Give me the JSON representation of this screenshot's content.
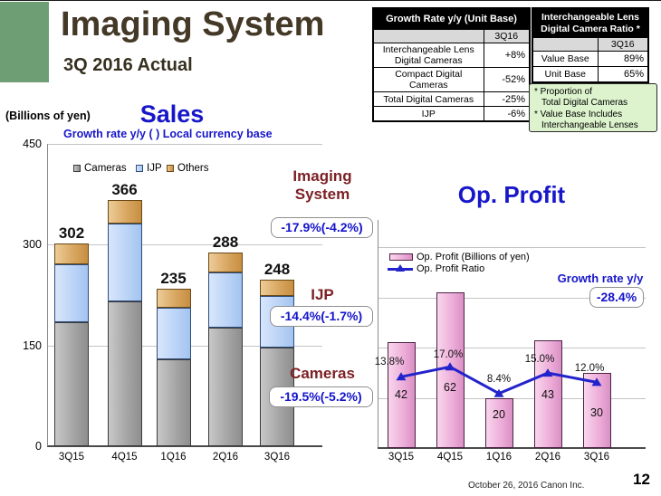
{
  "slide": {
    "title": "Imaging System",
    "subtitle": "3Q 2016 Actual",
    "footer": "October 26, 2016 Canon Inc.",
    "page_number": "12"
  },
  "growth_table": {
    "title": "Growth Rate y/y (Unit Base)",
    "col_header": "3Q16",
    "rows": [
      {
        "label": "Interchangeable Lens Digital Cameras",
        "value": "+8%"
      },
      {
        "label": "Compact Digital Cameras",
        "value": "-52%"
      },
      {
        "label": "Total Digital Cameras",
        "value": "-25%"
      },
      {
        "label": "IJP",
        "value": "-6%"
      }
    ]
  },
  "ratio_table": {
    "title": "Interchangeable Lens Digital Camera Ratio *",
    "col_header": "3Q16",
    "rows": [
      {
        "label": "Value Base",
        "value": "89%"
      },
      {
        "label": "Unit Base",
        "value": "65%"
      }
    ]
  },
  "ratio_note": {
    "lines": [
      "* Proportion of",
      "Total Digital Cameras",
      "* Value Base Includes",
      "Interchangeable Lenses"
    ]
  },
  "sales": {
    "units_label": "(Billions of yen)",
    "title": "Sales",
    "subtitle": "Growth rate y/y  ( ) Local currency base",
    "annotations": [
      {
        "heading": "Imaging System",
        "value": "-17.9%(-4.2%)"
      },
      {
        "heading": "IJP",
        "value": "-14.4%(-1.7%)"
      },
      {
        "heading": "Cameras",
        "value": "-19.5%(-5.2%)"
      }
    ]
  },
  "op_profit": {
    "title": "Op. Profit",
    "growth_label": "Growth rate y/y",
    "growth_value": "-28.4%"
  },
  "chart_data": [
    {
      "id": "sales",
      "type": "bar",
      "subtype": "stacked-bar",
      "title": "Sales",
      "categories": [
        "3Q15",
        "4Q15",
        "1Q16",
        "2Q16",
        "3Q16"
      ],
      "series": [
        {
          "name": "Cameras",
          "values": [
            184,
            215,
            130,
            176,
            147
          ]
        },
        {
          "name": "IJP",
          "values": [
            87,
            116,
            76,
            83,
            77
          ]
        },
        {
          "name": "Others",
          "values": [
            31,
            35,
            29,
            29,
            24
          ]
        }
      ],
      "totals": [
        302,
        366,
        235,
        288,
        248
      ],
      "ylabel": "(Billions of yen)",
      "ylim": [
        0,
        450
      ],
      "yticks": [
        0,
        150,
        300,
        450
      ],
      "grid": true,
      "legend_position": "top-inside"
    },
    {
      "id": "op_profit",
      "type": "line",
      "subtype": "bar+line",
      "title": "Op. Profit",
      "categories": [
        "3Q15",
        "4Q15",
        "1Q16",
        "2Q16",
        "3Q16"
      ],
      "series": [
        {
          "name": "Op. Profit (Billions of yen)",
          "type": "bar",
          "values": [
            42,
            62,
            20,
            43,
            30
          ]
        },
        {
          "name": "Op. Profit Ratio",
          "type": "line",
          "values_pct": [
            13.8,
            17.0,
            8.4,
            15.0,
            12.0
          ]
        }
      ],
      "bar_labels": [
        "42",
        "62",
        "20",
        "43",
        "30"
      ],
      "ratio_labels": [
        "13.8%",
        "17.0%",
        "8.4%",
        "15.0%",
        "12.0%"
      ],
      "ylim": [
        0,
        90
      ],
      "grid_values": [
        20,
        40,
        60,
        80
      ],
      "ratio_axis": {
        "min": -9.2,
        "max": 64.4
      },
      "grid": true,
      "legend_position": "top-inside"
    }
  ],
  "colors": {
    "accent_green": "#6d9e74",
    "title_brown": "#443826",
    "blue_text": "#1717c9",
    "maroon_text": "#7c2125",
    "cameras_bar": "#a3a3a3",
    "ijp_bar": "#bcd4f7",
    "others_bar": "#d9a761",
    "profit_bar": "#eeafda",
    "ratio_line": "#2323cc",
    "note_bg": "#dcf3cd",
    "table_header_bg": "#000000",
    "table_subhead_bg": "#d9d9d9"
  }
}
